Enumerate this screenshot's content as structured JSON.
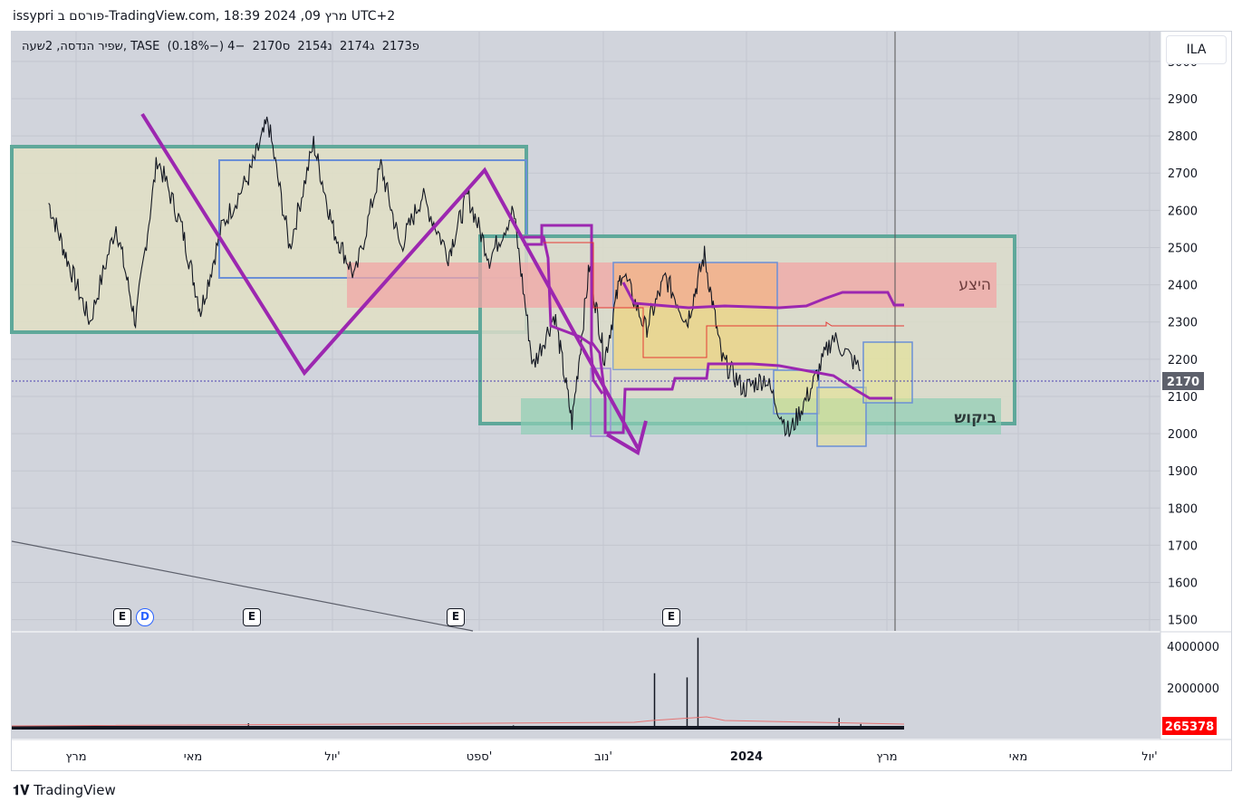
{
  "header": {
    "title": "issypri פורסם ב-TradingView.com, 18:39 2024 ,09 מרץ UTC+2"
  },
  "legend": {
    "symbol": "שפיר הנדסה, 2שעה, TASE",
    "open": "פ2173",
    "high": "ג2174",
    "low": "נ2154",
    "close": "ס2170",
    "change": "−4 (−0.18%)"
  },
  "currency_button": "ILA",
  "footer_brand": "TradingView",
  "annotations": {
    "supply": "היצע",
    "demand": "ביקוש"
  },
  "events": {
    "earnings": "E",
    "dividend": "D"
  },
  "chart_data": {
    "type": "line",
    "price_axis": {
      "ticks": [
        3000,
        2900,
        2800,
        2700,
        2600,
        2500,
        2400,
        2300,
        2200,
        2100,
        2000,
        1900,
        1800,
        1700,
        1600,
        1500
      ],
      "range": [
        1470,
        3080
      ]
    },
    "volume_axis": {
      "ticks": [
        "4000000",
        "2000000"
      ],
      "range": [
        0,
        4600000
      ]
    },
    "last_price": "2170",
    "last_volume": "265378",
    "time_labels": [
      "מרץ",
      "מאי",
      "יול'",
      "ספט'",
      "נוב'",
      "2024",
      "מרץ",
      "מאי",
      "יול'"
    ],
    "price_series": [
      [
        "2023-03-01",
        2620
      ],
      [
        "2023-03-10",
        2460
      ],
      [
        "2023-03-20",
        2300
      ],
      [
        "2023-04-01",
        2560
      ],
      [
        "2023-04-10",
        2300
      ],
      [
        "2023-04-20",
        2740
      ],
      [
        "2023-05-01",
        2560
      ],
      [
        "2023-05-10",
        2330
      ],
      [
        "2023-05-20",
        2560
      ],
      [
        "2023-06-01",
        2690
      ],
      [
        "2023-06-10",
        2840
      ],
      [
        "2023-06-20",
        2500
      ],
      [
        "2023-07-01",
        2780
      ],
      [
        "2023-07-10",
        2550
      ],
      [
        "2023-07-20",
        2420
      ],
      [
        "2023-08-01",
        2720
      ],
      [
        "2023-08-10",
        2500
      ],
      [
        "2023-08-20",
        2640
      ],
      [
        "2023-09-01",
        2480
      ],
      [
        "2023-09-10",
        2640
      ],
      [
        "2023-09-20",
        2470
      ],
      [
        "2023-10-01",
        2600
      ],
      [
        "2023-10-10",
        2180
      ],
      [
        "2023-10-20",
        2320
      ],
      [
        "2023-10-28",
        2030
      ],
      [
        "2023-11-05",
        2450
      ],
      [
        "2023-11-12",
        2200
      ],
      [
        "2023-11-20",
        2440
      ],
      [
        "2023-12-01",
        2280
      ],
      [
        "2023-12-10",
        2420
      ],
      [
        "2023-12-20",
        2300
      ],
      [
        "2023-12-28",
        2480
      ],
      [
        "2024-01-05",
        2200
      ],
      [
        "2024-01-15",
        2120
      ],
      [
        "2024-01-25",
        2150
      ],
      [
        "2024-02-05",
        2000
      ],
      [
        "2024-02-15",
        2120
      ],
      [
        "2024-02-25",
        2260
      ],
      [
        "2024-03-09",
        2170
      ]
    ],
    "volume_series": [
      [
        "2023-06-01",
        300000
      ],
      [
        "2023-10-01",
        200000
      ],
      [
        "2023-12-05",
        2700000
      ],
      [
        "2023-12-20",
        2500000
      ],
      [
        "2023-12-25",
        4400000
      ],
      [
        "2024-02-28",
        550000
      ],
      [
        "2024-03-09",
        265378
      ]
    ]
  }
}
